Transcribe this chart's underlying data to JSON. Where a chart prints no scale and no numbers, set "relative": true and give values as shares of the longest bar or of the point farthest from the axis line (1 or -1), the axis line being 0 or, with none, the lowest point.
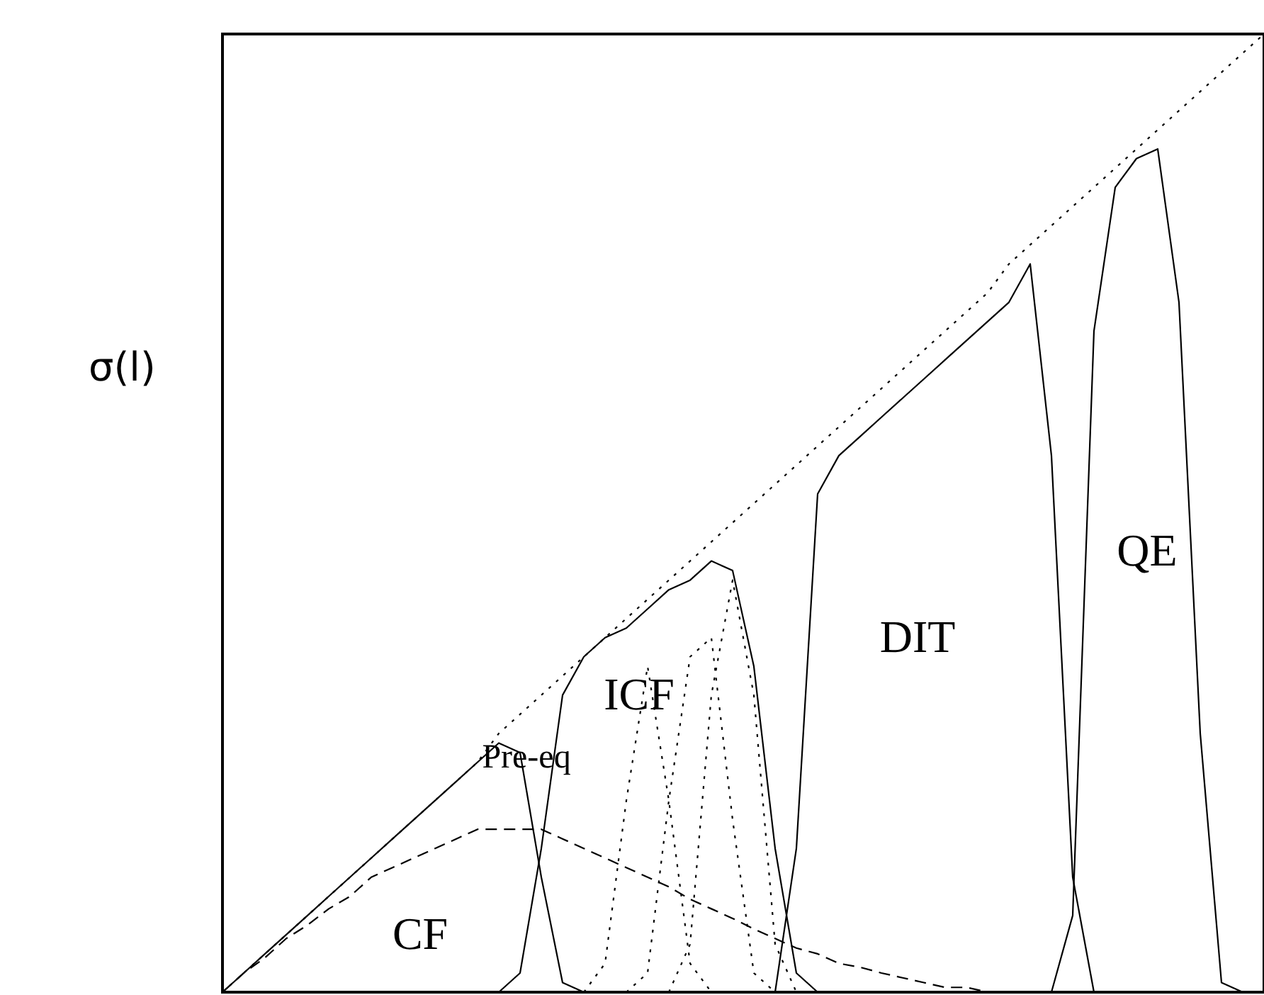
{
  "chart_data": {
    "type": "line",
    "relative": true,
    "ylabel": "σ(l)",
    "grid": false,
    "marker": "none",
    "categories": [
      null,
      null,
      null,
      null,
      null,
      null,
      null,
      null,
      null,
      null,
      null,
      null,
      null,
      null,
      null,
      null,
      null,
      null,
      null,
      null,
      null,
      null,
      null,
      null,
      null,
      null,
      null,
      null,
      null,
      null,
      null,
      null,
      null,
      null,
      null,
      null,
      null,
      null,
      null,
      null,
      null,
      null,
      null,
      null,
      null,
      null,
      null,
      null,
      null,
      null
    ],
    "annotations": [
      "Pre-eq",
      "ICF",
      "CF",
      "DIT",
      "QE"
    ],
    "series": [
      {
        "color": "#000000",
        "line_style": "dotted",
        "values": [
          0,
          0.02,
          0.04,
          0.06,
          0.08,
          0.1,
          0.12,
          0.14,
          0.16,
          0.18,
          0.2,
          0.22,
          0.24,
          0.27,
          0.29,
          0.31,
          0.33,
          0.35,
          0.37,
          0.39,
          0.41,
          0.43,
          0.45,
          0.47,
          0.49,
          0.51,
          0.53,
          0.55,
          0.57,
          0.59,
          0.61,
          0.63,
          0.65,
          0.67,
          0.69,
          0.71,
          0.73,
          0.76,
          0.78,
          0.8,
          0.82,
          0.84,
          0.86,
          0.88,
          0.9,
          0.92,
          0.94,
          0.96,
          0.98,
          1.0
        ]
      },
      {
        "color": "#000000",
        "line_style": "solid",
        "values": [
          0,
          0.02,
          0.04,
          0.06,
          0.08,
          0.1,
          0.12,
          0.14,
          0.16,
          0.18,
          0.2,
          0.22,
          0.24,
          0.26,
          0.25,
          0.12,
          0.01,
          0,
          null,
          null,
          null,
          null,
          null,
          null,
          null,
          null,
          null,
          null,
          null,
          null,
          null,
          null,
          null,
          null,
          null,
          null,
          null,
          null,
          null,
          null,
          null,
          null,
          null,
          null,
          null,
          null,
          null,
          null,
          null,
          null
        ]
      },
      {
        "color": "#000000",
        "line_style": "solid",
        "values": [
          null,
          null,
          null,
          null,
          null,
          null,
          null,
          null,
          null,
          null,
          null,
          null,
          null,
          0,
          0.02,
          0.15,
          0.31,
          0.35,
          0.37,
          0.38,
          0.4,
          0.42,
          0.43,
          0.45,
          0.44,
          0.34,
          0.15,
          0.02,
          0,
          null,
          null,
          null,
          null,
          null,
          null,
          null,
          null,
          null,
          null,
          null,
          null,
          null,
          null,
          null,
          null,
          null,
          null,
          null,
          null,
          null
        ]
      },
      {
        "color": "#000000",
        "line_style": "solid",
        "values": [
          null,
          null,
          null,
          null,
          null,
          null,
          null,
          null,
          null,
          null,
          null,
          null,
          null,
          null,
          null,
          null,
          null,
          null,
          null,
          null,
          null,
          null,
          null,
          null,
          null,
          null,
          0,
          0.15,
          0.52,
          0.56,
          0.58,
          0.6,
          0.62,
          0.64,
          0.66,
          0.68,
          0.7,
          0.72,
          0.76,
          0.56,
          0.12,
          0,
          null,
          null,
          null,
          null,
          null,
          null,
          null,
          null
        ]
      },
      {
        "color": "#000000",
        "line_style": "solid",
        "values": [
          null,
          null,
          null,
          null,
          null,
          null,
          null,
          null,
          null,
          null,
          null,
          null,
          null,
          null,
          null,
          null,
          null,
          null,
          null,
          null,
          null,
          null,
          null,
          null,
          null,
          null,
          null,
          null,
          null,
          null,
          null,
          null,
          null,
          null,
          null,
          null,
          null,
          null,
          null,
          0,
          0.08,
          0.69,
          0.84,
          0.87,
          0.88,
          0.72,
          0.27,
          0.01,
          0,
          null
        ]
      },
      {
        "color": "#000000",
        "line_style": "dashed",
        "values": [
          0,
          0.02,
          0.036,
          0.056,
          0.07,
          0.087,
          0.1,
          0.12,
          0.13,
          0.14,
          0.15,
          0.16,
          0.17,
          0.17,
          0.17,
          0.17,
          0.16,
          0.15,
          0.14,
          0.13,
          0.12,
          0.11,
          0.097,
          0.087,
          0.077,
          0.066,
          0.056,
          0.046,
          0.04,
          0.03,
          0.026,
          0.02,
          0.015,
          0.01,
          0.005,
          0.005,
          0,
          0,
          0,
          0,
          0,
          null,
          null,
          null,
          null,
          null,
          null,
          null,
          null,
          null
        ]
      },
      {
        "color": "#000000",
        "line_style": "dotted",
        "values": [
          null,
          null,
          null,
          null,
          null,
          null,
          null,
          null,
          null,
          null,
          null,
          null,
          null,
          null,
          null,
          null,
          null,
          0,
          0.03,
          0.2,
          0.34,
          0.2,
          0.03,
          0,
          null,
          null,
          null,
          null,
          null,
          null,
          null,
          null,
          null,
          null,
          null,
          null,
          null,
          null,
          null,
          null,
          null,
          null,
          null,
          null,
          null,
          null,
          null,
          null,
          null,
          null
        ]
      },
      {
        "color": "#000000",
        "line_style": "dotted",
        "values": [
          null,
          null,
          null,
          null,
          null,
          null,
          null,
          null,
          null,
          null,
          null,
          null,
          null,
          null,
          null,
          null,
          null,
          null,
          null,
          0,
          0.02,
          0.2,
          0.35,
          0.37,
          0.18,
          0.02,
          0,
          null,
          null,
          null,
          null,
          null,
          null,
          null,
          null,
          null,
          null,
          null,
          null,
          null,
          null,
          null,
          null,
          null,
          null,
          null,
          null,
          null,
          null,
          null
        ]
      },
      {
        "color": "#000000",
        "line_style": "dotted",
        "values": [
          null,
          null,
          null,
          null,
          null,
          null,
          null,
          null,
          null,
          null,
          null,
          null,
          null,
          null,
          null,
          null,
          null,
          null,
          null,
          null,
          null,
          0,
          0.05,
          0.31,
          0.43,
          0.31,
          0.05,
          0,
          null,
          null,
          null,
          null,
          null,
          null,
          null,
          null,
          null,
          null,
          null,
          null,
          null,
          null,
          null,
          null,
          null,
          null,
          null,
          null,
          null,
          null
        ]
      }
    ]
  }
}
